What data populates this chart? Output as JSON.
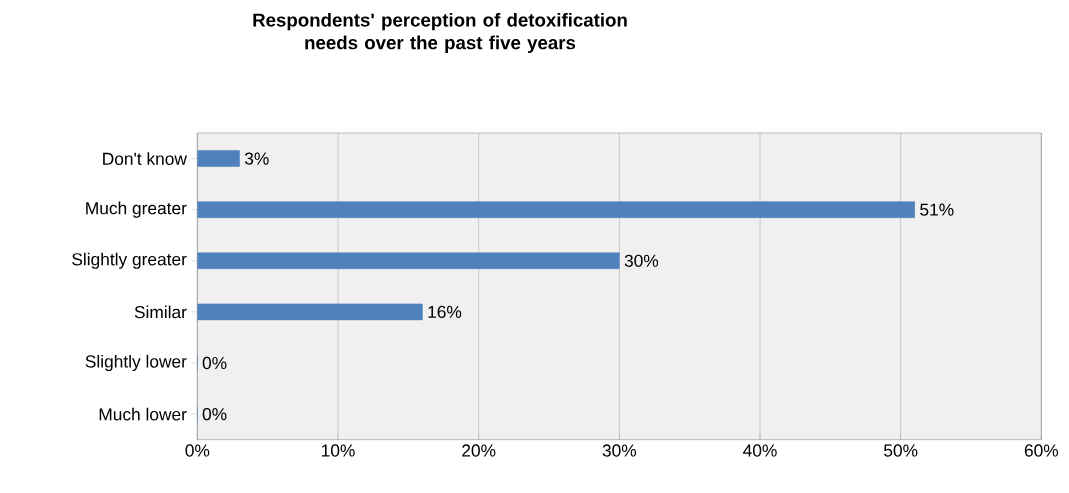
{
  "chart_data": {
    "type": "bar",
    "orientation": "horizontal",
    "title": "Respondents' perception of detoxification needs over the past five years",
    "categories": [
      "Don't know",
      "Much greater",
      "Slightly greater",
      "Similar",
      "Slightly lower",
      "Much lower"
    ],
    "values": [
      3,
      51,
      30,
      16,
      0,
      0
    ],
    "value_labels": [
      "3%",
      "51%",
      "30%",
      "16%",
      "0%",
      "0%"
    ],
    "color": "#4f81bd",
    "xlim": [
      0,
      60
    ],
    "xticks": [
      {
        "value": 0,
        "label": "0%"
      },
      {
        "value": 10,
        "label": "10%"
      },
      {
        "value": 20,
        "label": "20%"
      },
      {
        "value": 30,
        "label": "30%"
      },
      {
        "value": 40,
        "label": "40%"
      },
      {
        "value": 50,
        "label": "50%"
      },
      {
        "value": 60,
        "label": "60%"
      }
    ],
    "grid": "x"
  }
}
